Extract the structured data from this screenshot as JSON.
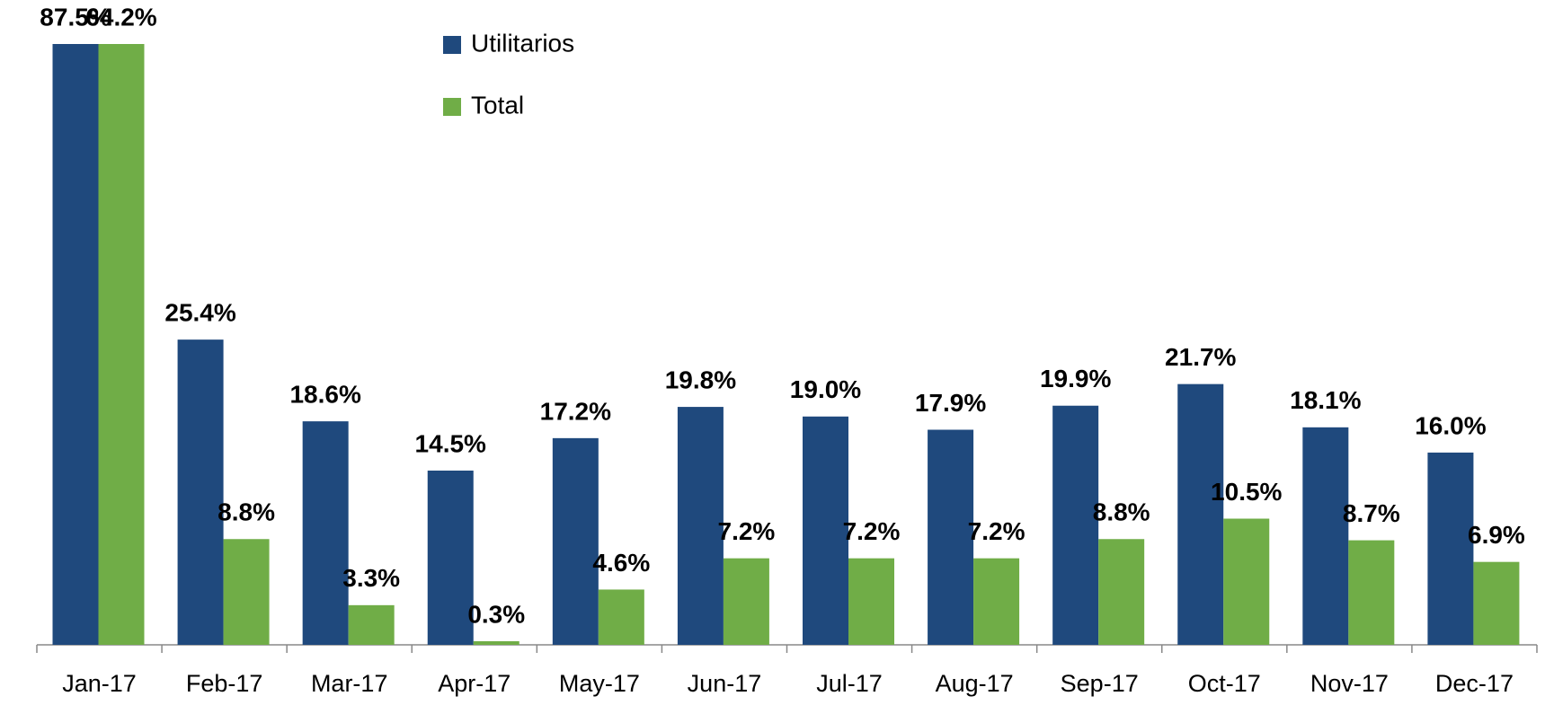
{
  "chart_data": {
    "type": "bar",
    "categories": [
      "Jan-17",
      "Feb-17",
      "Mar-17",
      "Apr-17",
      "May-17",
      "Jun-17",
      "Jul-17",
      "Aug-17",
      "Sep-17",
      "Oct-17",
      "Nov-17",
      "Dec-17"
    ],
    "series": [
      {
        "name": "Utilitarios",
        "color": "#1f497d",
        "values": [
          87.5,
          25.4,
          18.6,
          14.5,
          17.2,
          19.8,
          19.0,
          17.9,
          19.9,
          21.7,
          18.1,
          16.0
        ],
        "value_labels": [
          "87.5%",
          "25.4%",
          "18.6%",
          "14.5%",
          "17.2%",
          "19.8%",
          "19.0%",
          "17.9%",
          "19.9%",
          "21.7%",
          "18.1%",
          "16.0%"
        ]
      },
      {
        "name": "Total",
        "color": "#70ad47",
        "values": [
          64.2,
          8.8,
          3.3,
          0.3,
          4.6,
          7.2,
          7.2,
          7.2,
          8.8,
          10.5,
          8.7,
          6.9
        ],
        "value_labels": [
          "64.2%",
          "8.8%",
          "3.3%",
          "0.3%",
          "4.6%",
          "7.2%",
          "7.2%",
          "7.2%",
          "8.8%",
          "10.5%",
          "8.7%",
          "6.9%"
        ]
      }
    ],
    "ylim": [
      0,
      50
    ]
  }
}
